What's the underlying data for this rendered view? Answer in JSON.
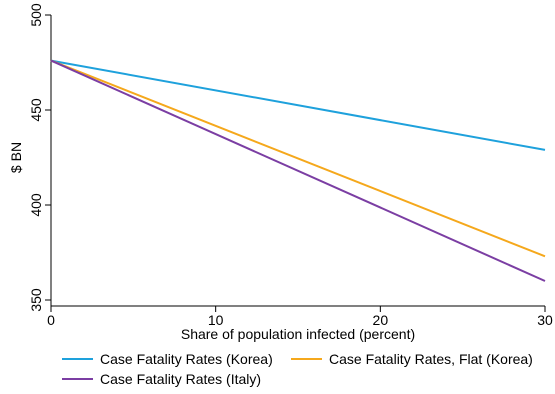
{
  "chart_data": {
    "type": "line",
    "title": "",
    "xlabel": "Share of population infected (percent)",
    "ylabel": "$ BN",
    "xlim": [
      0,
      30
    ],
    "ylim": [
      350,
      500
    ],
    "xticks": [
      0,
      10,
      20,
      30
    ],
    "yticks": [
      350,
      400,
      450,
      500
    ],
    "grid": false,
    "legend_position": "bottom",
    "series": [
      {
        "name": "Case Fatality Rates (Korea)",
        "color": "#1ea1dc",
        "x": [
          0,
          30
        ],
        "y": [
          476,
          429
        ]
      },
      {
        "name": "Case Fatality Rates, Flat (Korea)",
        "color": "#f5a81c",
        "x": [
          0,
          30
        ],
        "y": [
          476,
          373
        ]
      },
      {
        "name": "Case Fatality Rates (Italy)",
        "color": "#7b3ea3",
        "x": [
          0,
          30
        ],
        "y": [
          476,
          360
        ]
      }
    ]
  }
}
